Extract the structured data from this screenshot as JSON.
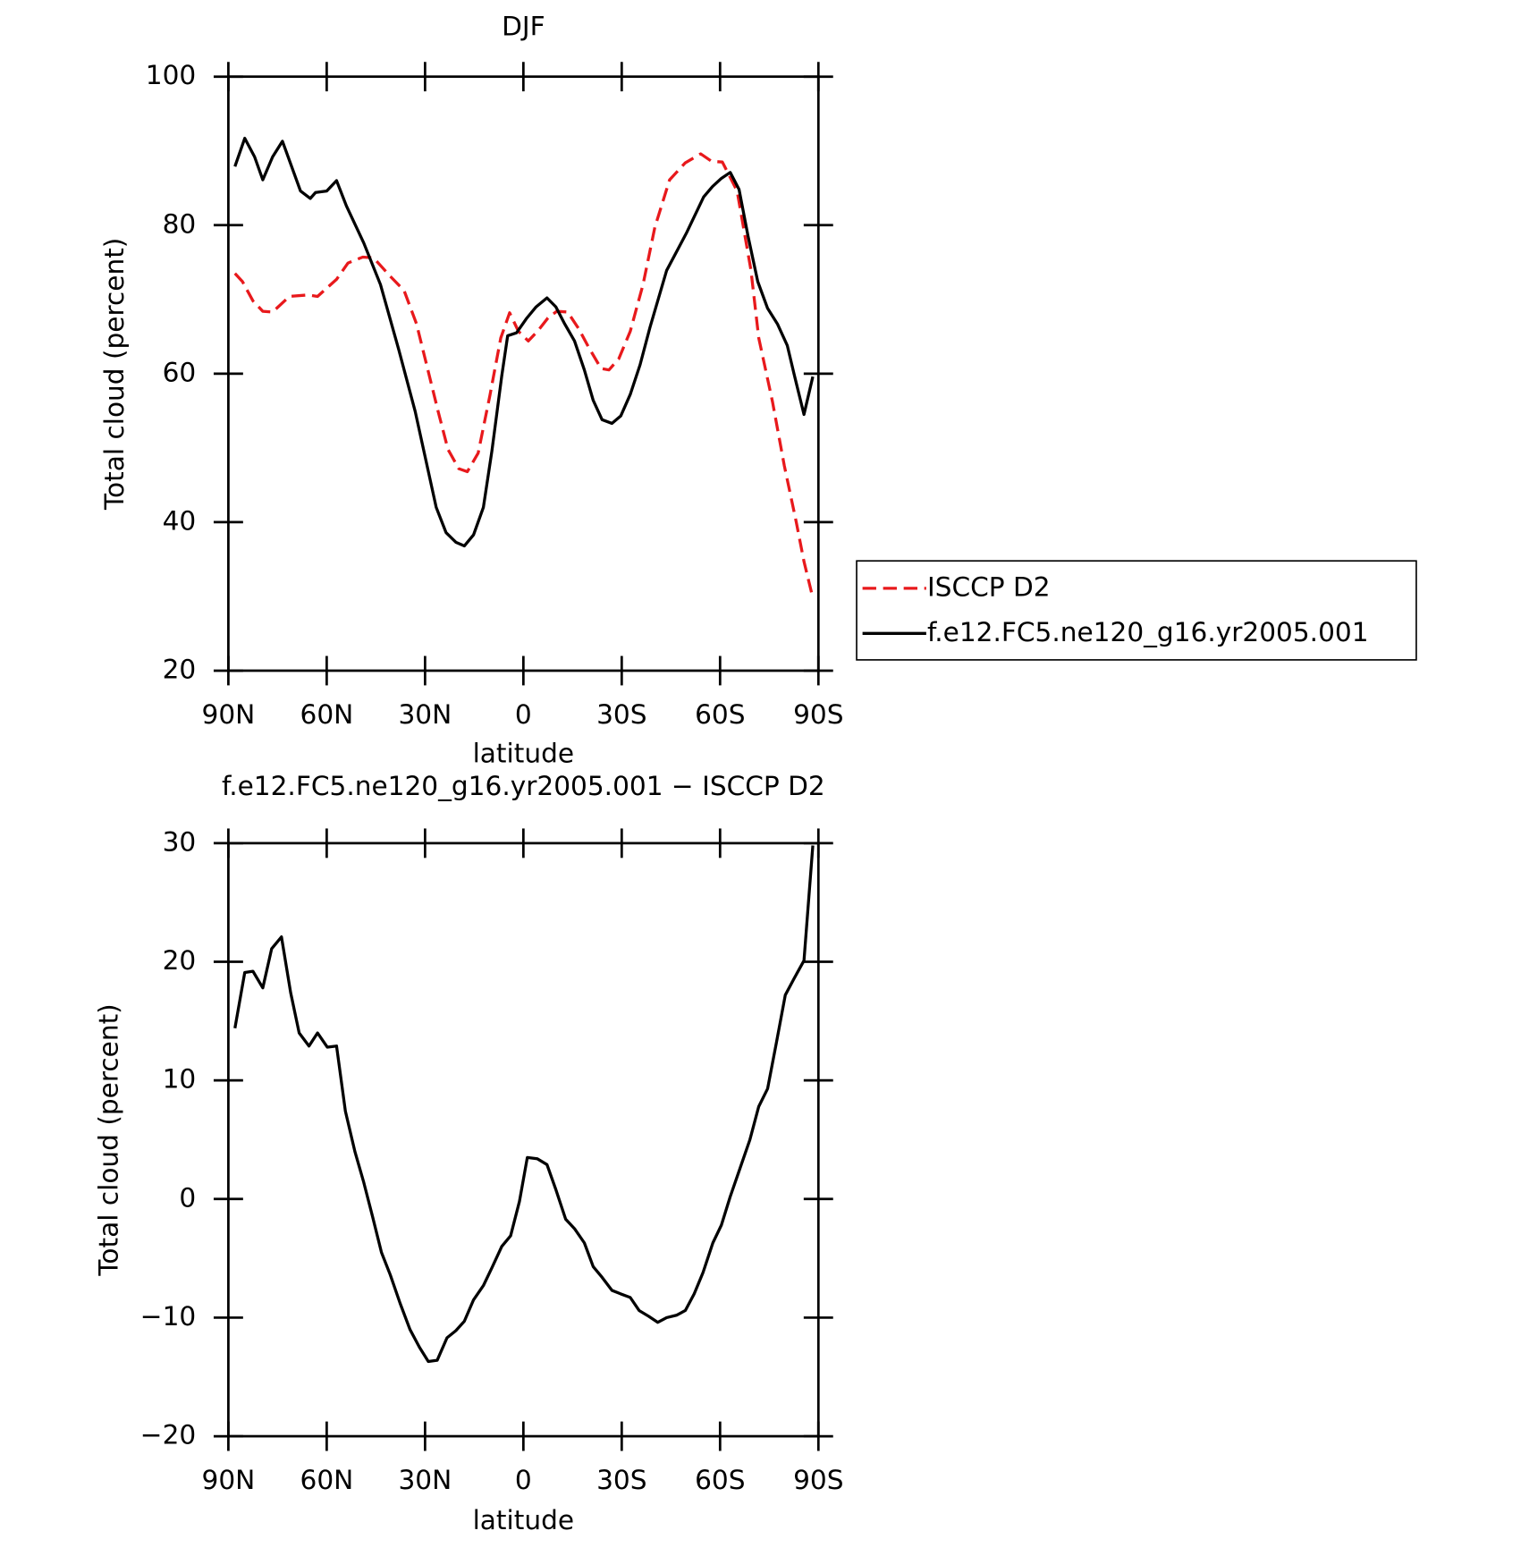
{
  "chart_data": [
    {
      "type": "line",
      "title": "DJF",
      "xlabel": "latitude",
      "ylabel": "Total cloud (percent)",
      "xlim": [
        90,
        -90
      ],
      "ylim": [
        20,
        100
      ],
      "xticks": [
        {
          "value": 90,
          "label": "90N"
        },
        {
          "value": 60,
          "label": "60N"
        },
        {
          "value": 30,
          "label": "30N"
        },
        0,
        {
          "value": -30,
          "label": "30S"
        },
        {
          "value": -60,
          "label": "60S"
        },
        {
          "value": -90,
          "label": "90S"
        }
      ],
      "yticks": [
        20,
        40,
        60,
        80,
        100
      ],
      "legend": "right",
      "series": [
        {
          "name": "ISCCP D2",
          "color": "#e8191c",
          "line_style": "dashed",
          "x": [
            88,
            85.7,
            82.5,
            79.5,
            76.5,
            71.4,
            65.8,
            62.8,
            57,
            53.5,
            49,
            45.7,
            40.6,
            36.4,
            32.6,
            29.3,
            26,
            23,
            19.7,
            17.1,
            13.8,
            10.2,
            6.9,
            4.2,
            1.5,
            -1.5,
            -4.5,
            -7.5,
            -10.2,
            -13.5,
            -16.8,
            -20.1,
            -23.7,
            -26.1,
            -29.1,
            -32.6,
            -36.5,
            -40.1,
            -44.6,
            -49.4,
            -54.1,
            -57.4,
            -60.7,
            -65.2,
            -69.4,
            -71.8,
            -76,
            -79.6,
            -83.2,
            -85.6,
            -88.3
          ],
          "values": [
            73.5,
            72.4,
            69.8,
            68.4,
            68.3,
            70.4,
            70.6,
            70.4,
            72.7,
            74.9,
            75.7,
            75.6,
            73.1,
            71.2,
            66.7,
            60.8,
            54.9,
            49.8,
            47.2,
            46.8,
            49.3,
            57.1,
            64.8,
            68.2,
            65.7,
            64.4,
            65.8,
            67.5,
            68.4,
            68.3,
            66.1,
            63.4,
            60.7,
            60.5,
            62.0,
            65.7,
            72.0,
            79.7,
            86.1,
            88.4,
            89.6,
            88.6,
            88.5,
            84.6,
            74.0,
            64.8,
            56.2,
            47.6,
            40.1,
            34.7,
            29.8
          ]
        },
        {
          "name": "f.e12.FC5.ne120_g16.yr2005.001",
          "color": "#000000",
          "line_style": "solid",
          "x": [
            88,
            85,
            82,
            79.5,
            76.5,
            73.5,
            68,
            65,
            63.4,
            60,
            57,
            54,
            48.7,
            43.6,
            38,
            33,
            26.6,
            23.6,
            20.6,
            18,
            15.2,
            12.2,
            9.6,
            6.6,
            4.8,
            2.1,
            -0.9,
            -3.9,
            -7.2,
            -9.9,
            -12.6,
            -15.6,
            -18.6,
            -21.3,
            -24,
            -27,
            -29.7,
            -32.6,
            -35.6,
            -38.6,
            -43.7,
            -49.7,
            -55,
            -57.7,
            -60.4,
            -63.1,
            -65.8,
            -68.5,
            -71.5,
            -74.5,
            -77.5,
            -80.5,
            -82.6,
            -85.6,
            -88.3
          ],
          "values": [
            87.9,
            91.7,
            89.2,
            86.1,
            89.2,
            91.3,
            84.6,
            83.6,
            84.4,
            84.6,
            86.0,
            82.6,
            77.6,
            72.0,
            63.2,
            54.9,
            42.0,
            38.6,
            37.3,
            36.8,
            38.3,
            42.0,
            49.6,
            59.7,
            65.1,
            65.5,
            67.4,
            69.0,
            70.2,
            69.0,
            66.7,
            64.4,
            60.5,
            56.4,
            53.8,
            53.3,
            54.3,
            57.2,
            61.2,
            66.2,
            73.9,
            78.9,
            83.8,
            85.2,
            86.3,
            87.1,
            84.8,
            78.6,
            72.4,
            68.8,
            66.7,
            63.8,
            59.9,
            54.5,
            59.6
          ]
        }
      ]
    },
    {
      "type": "line",
      "title": "f.e12.FC5.ne120_g16.yr2005.001 − ISCCP D2",
      "xlabel": "latitude",
      "ylabel": "Total cloud (percent)",
      "xlim": [
        90,
        -90
      ],
      "ylim": [
        -20,
        30
      ],
      "xticks": [
        {
          "value": 90,
          "label": "90N"
        },
        {
          "value": 60,
          "label": "60N"
        },
        {
          "value": 30,
          "label": "30N"
        },
        0,
        {
          "value": -30,
          "label": "30S"
        },
        {
          "value": -60,
          "label": "60S"
        },
        {
          "value": -90,
          "label": "90S"
        }
      ],
      "yticks": [
        {
          "value": -20,
          "label": "−20"
        },
        {
          "value": -10,
          "label": "−10"
        },
        0,
        10,
        20,
        30
      ],
      "color": "#000000",
      "x": [
        88,
        85,
        82.5,
        79.5,
        76.8,
        73.8,
        71,
        68.4,
        65.4,
        62.8,
        59.8,
        57,
        54.3,
        51.4,
        48.7,
        46,
        43.3,
        40.6,
        37.6,
        34.6,
        31.7,
        29,
        26.3,
        23.3,
        20.6,
        18,
        15.2,
        12.2,
        9.6,
        6.6,
        3.9,
        1.2,
        -1.2,
        -4.2,
        -7.2,
        -9.9,
        -12.9,
        -15.6,
        -18.6,
        -21.3,
        -24,
        -27,
        -29.7,
        -32.6,
        -35.3,
        -38.3,
        -41,
        -43.7,
        -46.7,
        -49.4,
        -52.1,
        -54.8,
        -57.8,
        -60.4,
        -63.1,
        -66.1,
        -69.1,
        -71.8,
        -74.5,
        -77.2,
        -79.9,
        -82.6,
        -85.6,
        -88.3
      ],
      "values": [
        14.4,
        19.1,
        19.2,
        17.8,
        21.1,
        22.1,
        17.4,
        14.0,
        12.9,
        14.0,
        12.8,
        12.9,
        7.4,
        4.0,
        1.4,
        -1.5,
        -4.5,
        -6.4,
        -8.8,
        -11.0,
        -12.5,
        -13.7,
        -13.6,
        -11.7,
        -11.1,
        -10.3,
        -8.5,
        -7.3,
        -5.8,
        -4.0,
        -3.1,
        -0.2,
        3.5,
        3.4,
        2.9,
        0.8,
        -1.7,
        -2.5,
        -3.7,
        -5.7,
        -6.6,
        -7.7,
        -8.0,
        -8.3,
        -9.4,
        -9.9,
        -10.4,
        -10.0,
        -9.8,
        -9.4,
        -8.0,
        -6.2,
        -3.7,
        -2.2,
        0.2,
        2.6,
        5.0,
        7.8,
        9.3,
        13.2,
        17.2,
        18.6,
        20.1,
        29.8
      ]
    }
  ]
}
